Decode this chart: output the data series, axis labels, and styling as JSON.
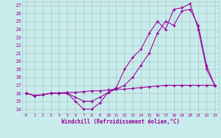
{
  "x": [
    0,
    1,
    2,
    3,
    4,
    5,
    6,
    7,
    8,
    9,
    10,
    11,
    12,
    13,
    14,
    15,
    16,
    17,
    18,
    19,
    20,
    21,
    22,
    23
  ],
  "line1": [
    16,
    15.7,
    15.8,
    16.0,
    16.0,
    16.0,
    15.0,
    14.0,
    14.0,
    14.8,
    16.1,
    16.7,
    19.0,
    20.5,
    21.5,
    23.5,
    25.0,
    24.0,
    26.5,
    26.7,
    27.2,
    24.0,
    19.0,
    17.0
  ],
  "line2": [
    16,
    15.7,
    15.8,
    16.0,
    16.0,
    16.0,
    15.5,
    15.0,
    15.0,
    15.5,
    16.1,
    16.5,
    17.0,
    18.0,
    19.5,
    21.0,
    23.5,
    25.0,
    24.5,
    26.3,
    26.5,
    24.5,
    19.5,
    17.0
  ],
  "line3": [
    16,
    15.7,
    15.8,
    16.0,
    16.0,
    16.1,
    16.1,
    16.2,
    16.3,
    16.3,
    16.4,
    16.5,
    16.5,
    16.6,
    16.7,
    16.8,
    16.9,
    17.0,
    17.0,
    17.0,
    17.0,
    17.0,
    17.0,
    17.0
  ],
  "background": "#c8ecec",
  "line_color": "#990099",
  "grid_color": "#b0c8c8",
  "xlabel": "Windchill (Refroidissement éolien,°C)",
  "ylabel_ticks": [
    14,
    15,
    16,
    17,
    18,
    19,
    20,
    21,
    22,
    23,
    24,
    25,
    26,
    27
  ],
  "xlim": [
    -0.5,
    23.5
  ],
  "ylim": [
    13.5,
    27.5
  ],
  "xticks": [
    0,
    1,
    2,
    3,
    4,
    5,
    6,
    7,
    8,
    9,
    10,
    11,
    12,
    13,
    14,
    15,
    16,
    17,
    18,
    19,
    20,
    21,
    22,
    23
  ]
}
